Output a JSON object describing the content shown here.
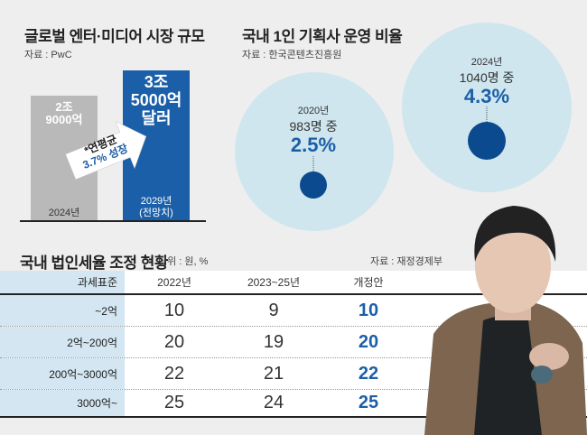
{
  "market": {
    "title": "글로벌 엔터·미디어 시장 규모",
    "source": "자료 : PwC",
    "bars": [
      {
        "value_lines": [
          "2조",
          "9000억"
        ],
        "year": "2024년",
        "color": "#b9b9b9"
      },
      {
        "value_lines": [
          "3조",
          "5000억",
          "달러"
        ],
        "year": "2029년",
        "year_note": "(전망치)",
        "color": "#1b5fa8"
      }
    ],
    "growth": [
      "*연평균",
      "3.7% 성장"
    ]
  },
  "agency": {
    "title": "국내 1인 기획사 운영 비율",
    "source": "자료 : 한국콘텐츠진흥원",
    "items": [
      {
        "year": "2020년",
        "total": "983명 중",
        "pct": "2.5%"
      },
      {
        "year": "2024년",
        "total": "1040명 중",
        "pct": "4.3%"
      }
    ]
  },
  "tax": {
    "title": "국내 법인세율 조정 현황",
    "unit": "단위 : 원, %",
    "source": "자료 : 재정경제부",
    "headers": [
      "과세표준",
      "2022년",
      "2023~25년",
      "개정안"
    ],
    "rows": [
      [
        "~2억",
        "10",
        "9",
        "10"
      ],
      [
        "2억~200억",
        "20",
        "19",
        "20"
      ],
      [
        "200억~3000억",
        "22",
        "21",
        "22"
      ],
      [
        "3000억~",
        "25",
        "24",
        "25"
      ]
    ]
  },
  "chart_data": [
    {
      "type": "bar",
      "title": "글로벌 엔터·미디어 시장 규모",
      "categories": [
        "2024년",
        "2029년(전망치)"
      ],
      "values": [
        29000,
        35000
      ],
      "unit": "억 달러",
      "annotation": "*연평균 3.7% 성장"
    },
    {
      "type": "bubble",
      "title": "국내 1인 기획사 운영 비율",
      "categories": [
        "2020년",
        "2024년"
      ],
      "totals": [
        983,
        1040
      ],
      "values": [
        2.5,
        4.3
      ],
      "unit": "%"
    },
    {
      "type": "table",
      "title": "국내 법인세율 조정 현황",
      "columns": [
        "2022년",
        "2023~25년",
        "개정안"
      ],
      "categories": [
        "~2억",
        "2억~200억",
        "200억~3000억",
        "3000억~"
      ],
      "series": [
        {
          "name": "2022년",
          "values": [
            10,
            20,
            22,
            25
          ]
        },
        {
          "name": "2023~25년",
          "values": [
            9,
            19,
            21,
            24
          ]
        },
        {
          "name": "개정안",
          "values": [
            10,
            20,
            22,
            25
          ]
        }
      ]
    }
  ]
}
